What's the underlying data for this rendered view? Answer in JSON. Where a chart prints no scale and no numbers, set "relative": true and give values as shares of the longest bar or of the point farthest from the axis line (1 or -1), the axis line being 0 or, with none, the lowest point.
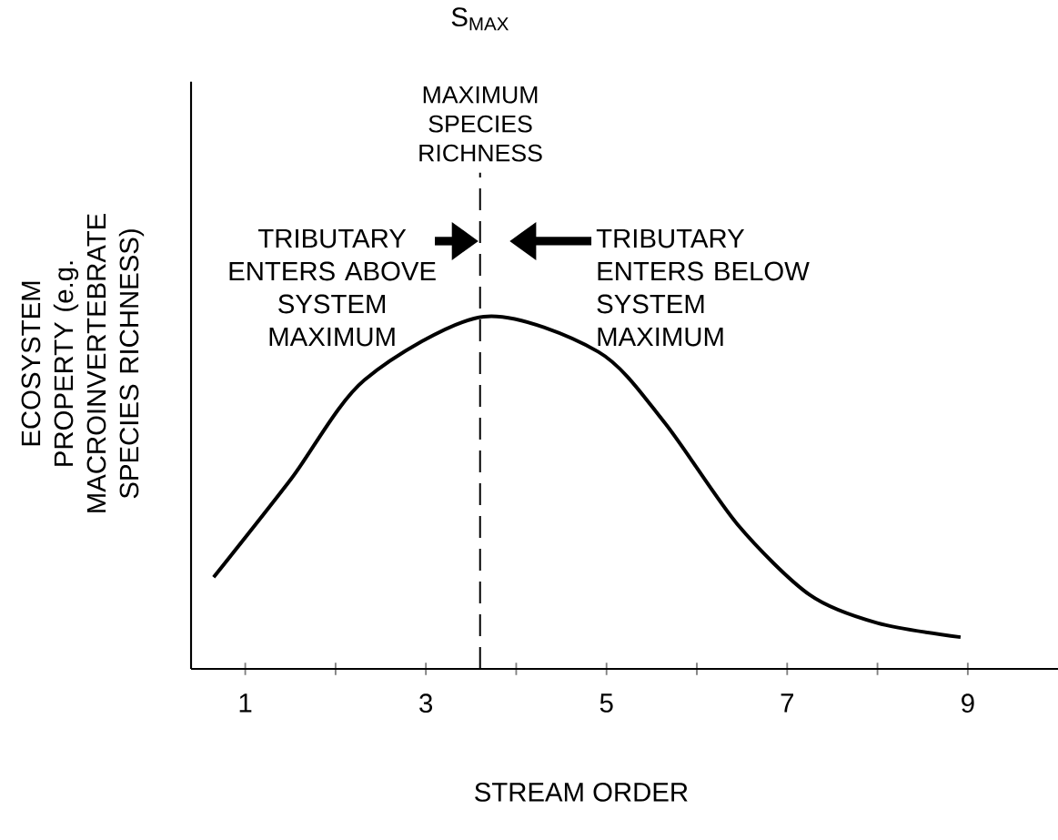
{
  "chart_data": {
    "type": "line",
    "relative": true,
    "xlabel": "STREAM ORDER",
    "ylabel": "ECOSYSTEM PROPERTY (e.g. MACROINVERTEBRATE SPECIES RICHNESS)",
    "x": [
      0.65,
      1.51,
      2.32,
      3.64,
      4.91,
      5.64,
      6.45,
      7.25,
      8.0,
      8.92
    ],
    "values": [
      0.26,
      0.54,
      0.82,
      1.0,
      0.9,
      0.7,
      0.41,
      0.21,
      0.13,
      0.09
    ],
    "color": "#000000",
    "xlim": [
      0.4,
      10
    ],
    "xticks": [
      1,
      {
        "value": 2,
        "label": null
      },
      3,
      {
        "value": 4,
        "label": null
      },
      5,
      {
        "value": 6,
        "label": null
      },
      7,
      {
        "value": 8,
        "label": null
      },
      9
    ],
    "ref_lines": [
      {
        "axis": "x",
        "value": 3.6,
        "label": "S$_{MAX}$",
        "line_style": "dashed"
      }
    ],
    "annotations": [
      "MAXIMUM SPECIES RICHNESS",
      "TRIBUTARY ENTERS ABOVE SYSTEM MAXIMUM",
      "TRIBUTARY ENTERS BELOW SYSTEM MAXIMUM"
    ],
    "grid": false,
    "marker": "none",
    "line_style": "solid"
  }
}
